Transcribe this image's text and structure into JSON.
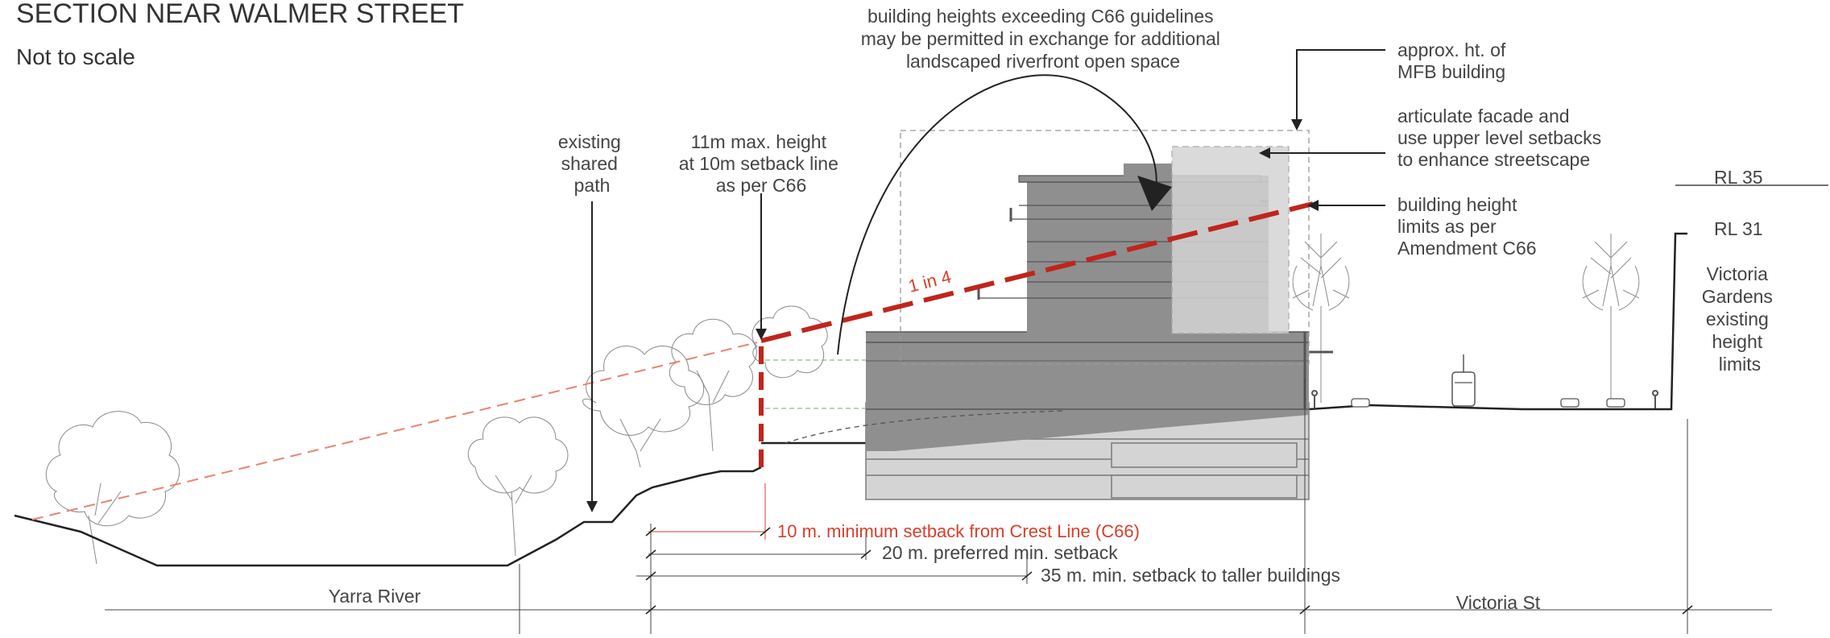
{
  "title": "SECTION NEAR WALMER STREET",
  "subtitle": "Not to scale",
  "callouts": {
    "top_center": [
      "building heights exceeding C66 guidelines",
      "may be permitted in exchange for additional",
      "landscaped riverfront open space"
    ],
    "mfb": [
      "approx. ht. of",
      "MFB building"
    ],
    "facade": [
      "articulate facade and",
      "use upper level setbacks",
      "to enhance streetscape"
    ],
    "height_limits": [
      "building height",
      "limits as per",
      "Amendment C66"
    ],
    "shared_path": [
      "existing",
      "shared",
      "path"
    ],
    "max_height": [
      "11m max. height",
      "at 10m setback line",
      "as per C66"
    ],
    "gardens": [
      "Victoria",
      "Gardens",
      "existing",
      "height",
      "limits"
    ]
  },
  "rl": {
    "upper": "RL 35",
    "lower": "RL 31"
  },
  "slope_label": "1 in 4",
  "dimensions": {
    "setback_10": "10 m. minimum setback from Crest Line (C66)",
    "setback_20": "20 m. preferred min. setback",
    "setback_35": "35 m. min. setback to taller buildings"
  },
  "zones": {
    "river": "Yarra River",
    "street": "Victoria St"
  },
  "colors": {
    "red": "#d6402b",
    "dark_red": "#c0251c",
    "grey_dark": "#8f8f8f",
    "grey_light": "#d4d4d4"
  }
}
